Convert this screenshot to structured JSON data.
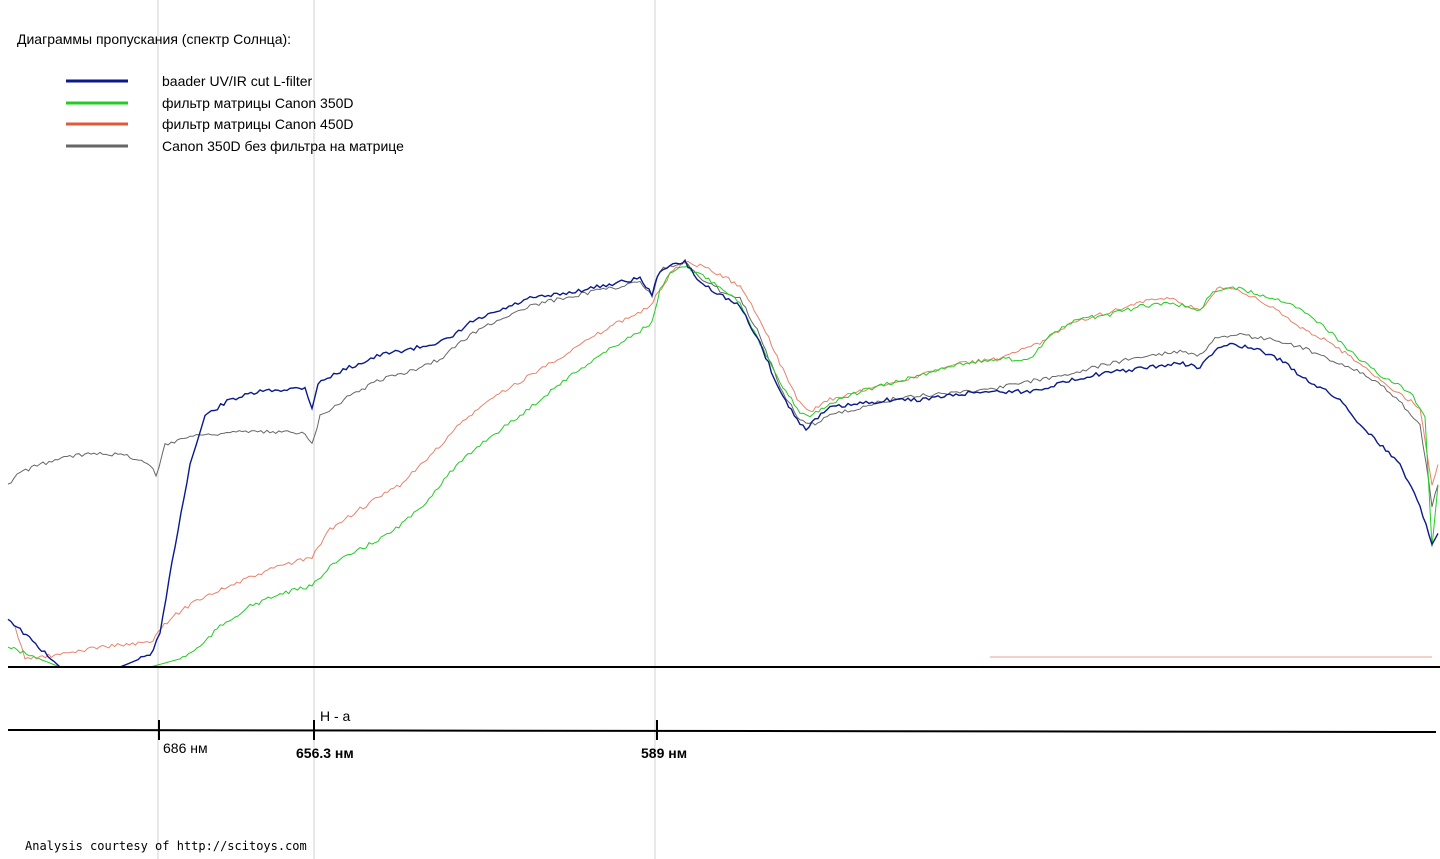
{
  "title": "Диаграммы пропускания (спектр Солнца):",
  "credit": "Analysis courtesy of http://scitoys.com",
  "legend": [
    {
      "label": "baader UV/IR cut L-filter",
      "color": "#0a1a8a"
    },
    {
      "label": "фильтр матрицы Canon 350D",
      "color": "#22cc22"
    },
    {
      "label": "фильтр матрицы Canon 450D",
      "color": "#e05a3a"
    },
    {
      "label": "Canon 350D без фильтра на матрице",
      "color": "#666666"
    }
  ],
  "axis": {
    "ticks": [
      {
        "label": "686 нм",
        "bold": false
      },
      {
        "label": "656.3 нм",
        "bold": true
      },
      {
        "label": "589 нм",
        "bold": true
      }
    ],
    "annotation": "H - a"
  },
  "chart_data": {
    "type": "line",
    "xlabel": "",
    "ylabel": "",
    "x_direction": "wavelength decreasing left to right",
    "grid": "vertical reference lines at 686, 656.3 and 589 nm",
    "series": [
      {
        "name": "baader UV/IR cut L-filter",
        "color": "#0a1a8a",
        "points": [
          [
            8,
            0.12
          ],
          [
            60,
            0
          ],
          [
            120,
            0
          ],
          [
            150,
            0.03
          ],
          [
            160,
            0.08
          ],
          [
            175,
            0.3
          ],
          [
            190,
            0.5
          ],
          [
            205,
            0.62
          ],
          [
            230,
            0.66
          ],
          [
            260,
            0.68
          ],
          [
            305,
            0.69
          ],
          [
            312,
            0.64
          ],
          [
            318,
            0.7
          ],
          [
            340,
            0.73
          ],
          [
            380,
            0.77
          ],
          [
            420,
            0.79
          ],
          [
            450,
            0.81
          ],
          [
            470,
            0.85
          ],
          [
            500,
            0.88
          ],
          [
            530,
            0.91
          ],
          [
            560,
            0.92
          ],
          [
            600,
            0.94
          ],
          [
            640,
            0.96
          ],
          [
            652,
            0.92
          ],
          [
            660,
            0.98
          ],
          [
            670,
            0.99
          ],
          [
            685,
            1.0
          ],
          [
            700,
            0.95
          ],
          [
            720,
            0.92
          ],
          [
            740,
            0.89
          ],
          [
            760,
            0.8
          ],
          [
            780,
            0.68
          ],
          [
            800,
            0.6
          ],
          [
            806,
            0.59
          ],
          [
            815,
            0.61
          ],
          [
            830,
            0.64
          ],
          [
            860,
            0.65
          ],
          [
            890,
            0.66
          ],
          [
            920,
            0.66
          ],
          [
            950,
            0.67
          ],
          [
            980,
            0.68
          ],
          [
            1000,
            0.68
          ],
          [
            1030,
            0.68
          ],
          [
            1060,
            0.7
          ],
          [
            1090,
            0.72
          ],
          [
            1120,
            0.73
          ],
          [
            1150,
            0.74
          ],
          [
            1180,
            0.75
          ],
          [
            1200,
            0.74
          ],
          [
            1215,
            0.78
          ],
          [
            1230,
            0.8
          ],
          [
            1260,
            0.78
          ],
          [
            1280,
            0.76
          ],
          [
            1300,
            0.72
          ],
          [
            1320,
            0.69
          ],
          [
            1340,
            0.66
          ],
          [
            1360,
            0.6
          ],
          [
            1380,
            0.55
          ],
          [
            1400,
            0.5
          ],
          [
            1420,
            0.4
          ],
          [
            1432,
            0.3
          ],
          [
            1438,
            0.33
          ]
        ]
      },
      {
        "name": "фильтр матрицы Canon 350D",
        "color": "#22cc22",
        "points": [
          [
            8,
            0.05
          ],
          [
            60,
            0
          ],
          [
            150,
            0
          ],
          [
            180,
            0.02
          ],
          [
            200,
            0.05
          ],
          [
            220,
            0.1
          ],
          [
            250,
            0.15
          ],
          [
            280,
            0.18
          ],
          [
            312,
            0.2
          ],
          [
            330,
            0.25
          ],
          [
            360,
            0.29
          ],
          [
            390,
            0.33
          ],
          [
            420,
            0.39
          ],
          [
            450,
            0.48
          ],
          [
            480,
            0.55
          ],
          [
            520,
            0.62
          ],
          [
            560,
            0.7
          ],
          [
            600,
            0.77
          ],
          [
            640,
            0.83
          ],
          [
            652,
            0.85
          ],
          [
            660,
            0.93
          ],
          [
            670,
            0.97
          ],
          [
            685,
            0.99
          ],
          [
            700,
            0.97
          ],
          [
            720,
            0.94
          ],
          [
            740,
            0.9
          ],
          [
            760,
            0.8
          ],
          [
            780,
            0.7
          ],
          [
            800,
            0.63
          ],
          [
            810,
            0.62
          ],
          [
            830,
            0.65
          ],
          [
            860,
            0.68
          ],
          [
            890,
            0.7
          ],
          [
            920,
            0.72
          ],
          [
            960,
            0.75
          ],
          [
            1000,
            0.76
          ],
          [
            1030,
            0.76
          ],
          [
            1050,
            0.82
          ],
          [
            1080,
            0.86
          ],
          [
            1110,
            0.87
          ],
          [
            1140,
            0.89
          ],
          [
            1170,
            0.9
          ],
          [
            1200,
            0.88
          ],
          [
            1210,
            0.92
          ],
          [
            1230,
            0.94
          ],
          [
            1260,
            0.92
          ],
          [
            1290,
            0.9
          ],
          [
            1320,
            0.85
          ],
          [
            1350,
            0.78
          ],
          [
            1380,
            0.72
          ],
          [
            1410,
            0.68
          ],
          [
            1425,
            0.62
          ],
          [
            1432,
            0.3
          ],
          [
            1438,
            0.45
          ]
        ]
      },
      {
        "name": "фильтр матрицы Canon 450D",
        "color": "#e05a3a",
        "points": [
          [
            15,
            0.1
          ],
          [
            25,
            0.02
          ],
          [
            60,
            0.03
          ],
          [
            100,
            0.05
          ],
          [
            150,
            0.06
          ],
          [
            170,
            0.12
          ],
          [
            200,
            0.17
          ],
          [
            240,
            0.21
          ],
          [
            280,
            0.25
          ],
          [
            312,
            0.27
          ],
          [
            330,
            0.34
          ],
          [
            360,
            0.39
          ],
          [
            400,
            0.45
          ],
          [
            430,
            0.52
          ],
          [
            460,
            0.6
          ],
          [
            490,
            0.66
          ],
          [
            530,
            0.72
          ],
          [
            570,
            0.78
          ],
          [
            610,
            0.84
          ],
          [
            650,
            0.89
          ],
          [
            670,
            0.97
          ],
          [
            685,
            1.0
          ],
          [
            700,
            0.99
          ],
          [
            720,
            0.97
          ],
          [
            740,
            0.94
          ],
          [
            760,
            0.86
          ],
          [
            780,
            0.75
          ],
          [
            800,
            0.65
          ],
          [
            810,
            0.63
          ],
          [
            830,
            0.66
          ],
          [
            860,
            0.68
          ],
          [
            890,
            0.7
          ],
          [
            920,
            0.72
          ],
          [
            960,
            0.75
          ],
          [
            1000,
            0.76
          ],
          [
            1040,
            0.8
          ],
          [
            1070,
            0.85
          ],
          [
            1100,
            0.87
          ],
          [
            1140,
            0.9
          ],
          [
            1170,
            0.91
          ],
          [
            1200,
            0.88
          ],
          [
            1220,
            0.94
          ],
          [
            1240,
            0.93
          ],
          [
            1270,
            0.89
          ],
          [
            1300,
            0.84
          ],
          [
            1330,
            0.8
          ],
          [
            1360,
            0.75
          ],
          [
            1390,
            0.69
          ],
          [
            1420,
            0.64
          ],
          [
            1432,
            0.45
          ],
          [
            1438,
            0.5
          ]
        ]
      },
      {
        "name": "Canon 350D без фильтра на матрице",
        "color": "#666666",
        "points": [
          [
            8,
            0.45
          ],
          [
            20,
            0.48
          ],
          [
            40,
            0.5
          ],
          [
            70,
            0.52
          ],
          [
            100,
            0.53
          ],
          [
            130,
            0.52
          ],
          [
            150,
            0.5
          ],
          [
            156,
            0.47
          ],
          [
            165,
            0.55
          ],
          [
            190,
            0.57
          ],
          [
            230,
            0.58
          ],
          [
            270,
            0.58
          ],
          [
            305,
            0.58
          ],
          [
            312,
            0.55
          ],
          [
            320,
            0.62
          ],
          [
            350,
            0.67
          ],
          [
            380,
            0.71
          ],
          [
            410,
            0.73
          ],
          [
            440,
            0.76
          ],
          [
            470,
            0.82
          ],
          [
            500,
            0.86
          ],
          [
            530,
            0.89
          ],
          [
            560,
            0.91
          ],
          [
            600,
            0.93
          ],
          [
            640,
            0.95
          ],
          [
            652,
            0.92
          ],
          [
            660,
            0.98
          ],
          [
            670,
            0.99
          ],
          [
            685,
            1.0
          ],
          [
            700,
            0.96
          ],
          [
            720,
            0.93
          ],
          [
            740,
            0.91
          ],
          [
            760,
            0.82
          ],
          [
            780,
            0.69
          ],
          [
            800,
            0.61
          ],
          [
            815,
            0.6
          ],
          [
            830,
            0.62
          ],
          [
            860,
            0.64
          ],
          [
            890,
            0.66
          ],
          [
            920,
            0.67
          ],
          [
            960,
            0.68
          ],
          [
            1000,
            0.69
          ],
          [
            1040,
            0.71
          ],
          [
            1080,
            0.73
          ],
          [
            1110,
            0.75
          ],
          [
            1150,
            0.77
          ],
          [
            1180,
            0.78
          ],
          [
            1200,
            0.77
          ],
          [
            1215,
            0.81
          ],
          [
            1240,
            0.82
          ],
          [
            1270,
            0.81
          ],
          [
            1300,
            0.79
          ],
          [
            1330,
            0.76
          ],
          [
            1360,
            0.73
          ],
          [
            1390,
            0.68
          ],
          [
            1420,
            0.6
          ],
          [
            1432,
            0.4
          ],
          [
            1438,
            0.45
          ]
        ]
      }
    ]
  }
}
